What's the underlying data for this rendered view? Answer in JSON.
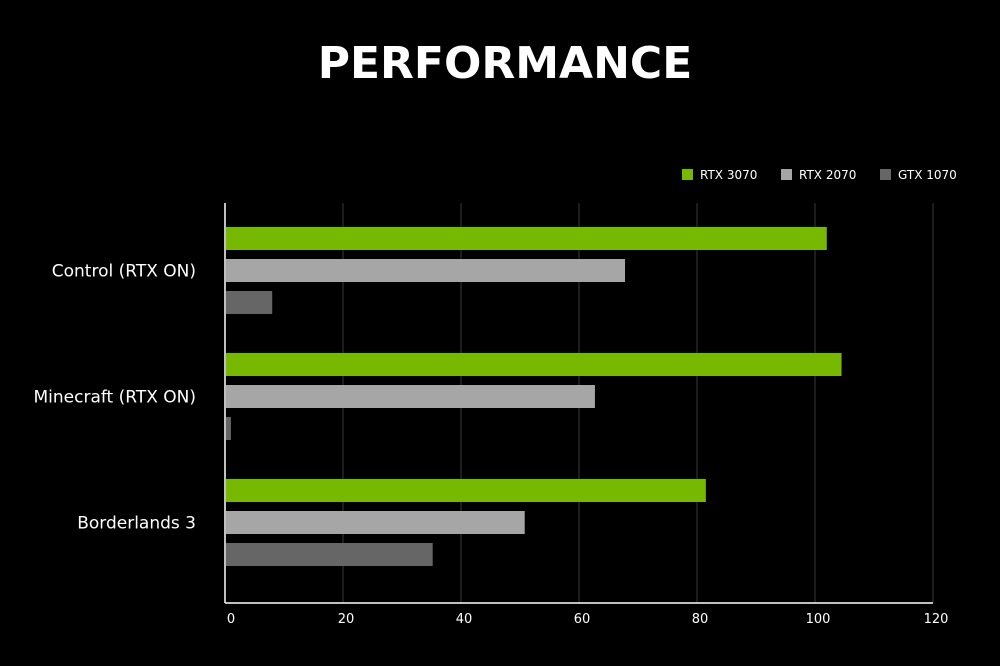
{
  "chart_data": {
    "type": "bar",
    "orientation": "horizontal",
    "title": "PERFORMANCE",
    "categories": [
      "Control (RTX ON)",
      "Minecraft (RTX ON)",
      "Borderlands 3"
    ],
    "series": [
      {
        "name": "RTX 3070",
        "color": "#76b900",
        "values": [
          102,
          104.5,
          81.5
        ]
      },
      {
        "name": "RTX 2070",
        "color": "#a6a6a6",
        "values": [
          67.8,
          62.7,
          50.8
        ]
      },
      {
        "name": "GTX 1070",
        "color": "#666666",
        "values": [
          8,
          1,
          35.2
        ]
      }
    ],
    "x_ticks": [
      0,
      20,
      40,
      60,
      80,
      100,
      120
    ],
    "xlim": [
      0,
      120
    ],
    "grid": true,
    "legend_position": "top-right"
  }
}
